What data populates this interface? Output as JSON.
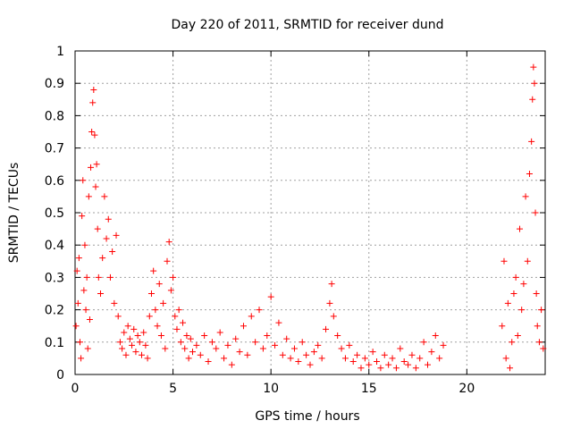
{
  "chart_data": {
    "type": "scatter",
    "title": "Day 220 of 2011, SRMTID for receiver dund",
    "xlabel": "GPS time / hours",
    "ylabel": "SRMTID / TECUs",
    "xlim": [
      0,
      24
    ],
    "ylim": [
      0,
      1
    ],
    "x_ticks": [
      0,
      5,
      10,
      15,
      20
    ],
    "x_tick_labels": [
      "0",
      "5",
      "10",
      "15",
      "20"
    ],
    "y_ticks": [
      0,
      0.1,
      0.2,
      0.3,
      0.4,
      0.5,
      0.6,
      0.7,
      0.8,
      0.9,
      1
    ],
    "y_tick_labels": [
      "0",
      "0.1",
      "0.2",
      "0.3",
      "0.4",
      "0.5",
      "0.6",
      "0.7",
      "0.8",
      "0.9",
      "1"
    ],
    "grid": true,
    "marker": "+",
    "series": [
      {
        "name": "dund",
        "color": "#ff0000",
        "points": [
          [
            0.05,
            0.15
          ],
          [
            0.1,
            0.32
          ],
          [
            0.15,
            0.22
          ],
          [
            0.2,
            0.36
          ],
          [
            0.25,
            0.1
          ],
          [
            0.3,
            0.05
          ],
          [
            0.35,
            0.49
          ],
          [
            0.4,
            0.6
          ],
          [
            0.45,
            0.26
          ],
          [
            0.5,
            0.4
          ],
          [
            0.55,
            0.2
          ],
          [
            0.6,
            0.3
          ],
          [
            0.65,
            0.08
          ],
          [
            0.7,
            0.55
          ],
          [
            0.75,
            0.17
          ],
          [
            0.8,
            0.64
          ],
          [
            0.85,
            0.75
          ],
          [
            0.9,
            0.84
          ],
          [
            0.95,
            0.88
          ],
          [
            1.0,
            0.74
          ],
          [
            1.05,
            0.58
          ],
          [
            1.1,
            0.65
          ],
          [
            1.15,
            0.45
          ],
          [
            1.2,
            0.3
          ],
          [
            1.3,
            0.25
          ],
          [
            1.4,
            0.36
          ],
          [
            1.5,
            0.55
          ],
          [
            1.6,
            0.42
          ],
          [
            1.7,
            0.48
          ],
          [
            1.8,
            0.3
          ],
          [
            1.9,
            0.38
          ],
          [
            2.0,
            0.22
          ],
          [
            2.1,
            0.43
          ],
          [
            2.2,
            0.18
          ],
          [
            2.3,
            0.1
          ],
          [
            2.4,
            0.08
          ],
          [
            2.5,
            0.13
          ],
          [
            2.6,
            0.06
          ],
          [
            2.7,
            0.15
          ],
          [
            2.8,
            0.11
          ],
          [
            2.9,
            0.09
          ],
          [
            3.0,
            0.14
          ],
          [
            3.1,
            0.07
          ],
          [
            3.2,
            0.12
          ],
          [
            3.3,
            0.1
          ],
          [
            3.4,
            0.06
          ],
          [
            3.5,
            0.13
          ],
          [
            3.6,
            0.09
          ],
          [
            3.7,
            0.05
          ],
          [
            3.8,
            0.18
          ],
          [
            3.9,
            0.25
          ],
          [
            4.0,
            0.32
          ],
          [
            4.1,
            0.2
          ],
          [
            4.2,
            0.15
          ],
          [
            4.3,
            0.28
          ],
          [
            4.4,
            0.12
          ],
          [
            4.5,
            0.22
          ],
          [
            4.6,
            0.08
          ],
          [
            4.7,
            0.35
          ],
          [
            4.8,
            0.41
          ],
          [
            4.9,
            0.26
          ],
          [
            5.0,
            0.3
          ],
          [
            5.1,
            0.18
          ],
          [
            5.2,
            0.14
          ],
          [
            5.3,
            0.2
          ],
          [
            5.4,
            0.1
          ],
          [
            5.5,
            0.16
          ],
          [
            5.6,
            0.08
          ],
          [
            5.7,
            0.12
          ],
          [
            5.8,
            0.05
          ],
          [
            5.9,
            0.11
          ],
          [
            6.0,
            0.07
          ],
          [
            6.2,
            0.09
          ],
          [
            6.4,
            0.06
          ],
          [
            6.6,
            0.12
          ],
          [
            6.8,
            0.04
          ],
          [
            7.0,
            0.1
          ],
          [
            7.2,
            0.08
          ],
          [
            7.4,
            0.13
          ],
          [
            7.6,
            0.05
          ],
          [
            7.8,
            0.09
          ],
          [
            8.0,
            0.03
          ],
          [
            8.2,
            0.11
          ],
          [
            8.4,
            0.07
          ],
          [
            8.6,
            0.15
          ],
          [
            8.8,
            0.06
          ],
          [
            9.0,
            0.18
          ],
          [
            9.2,
            0.1
          ],
          [
            9.4,
            0.2
          ],
          [
            9.6,
            0.08
          ],
          [
            9.8,
            0.12
          ],
          [
            10.0,
            0.24
          ],
          [
            10.2,
            0.09
          ],
          [
            10.4,
            0.16
          ],
          [
            10.6,
            0.06
          ],
          [
            10.8,
            0.11
          ],
          [
            11.0,
            0.05
          ],
          [
            11.2,
            0.08
          ],
          [
            11.4,
            0.04
          ],
          [
            11.6,
            0.1
          ],
          [
            11.8,
            0.06
          ],
          [
            12.0,
            0.03
          ],
          [
            12.2,
            0.07
          ],
          [
            12.4,
            0.09
          ],
          [
            12.6,
            0.05
          ],
          [
            12.8,
            0.14
          ],
          [
            13.0,
            0.22
          ],
          [
            13.1,
            0.28
          ],
          [
            13.2,
            0.18
          ],
          [
            13.4,
            0.12
          ],
          [
            13.6,
            0.08
          ],
          [
            13.8,
            0.05
          ],
          [
            14.0,
            0.09
          ],
          [
            14.2,
            0.04
          ],
          [
            14.4,
            0.06
          ],
          [
            14.6,
            0.02
          ],
          [
            14.8,
            0.05
          ],
          [
            15.0,
            0.03
          ],
          [
            15.2,
            0.07
          ],
          [
            15.4,
            0.04
          ],
          [
            15.6,
            0.02
          ],
          [
            15.8,
            0.06
          ],
          [
            16.0,
            0.03
          ],
          [
            16.2,
            0.05
          ],
          [
            16.4,
            0.02
          ],
          [
            16.6,
            0.08
          ],
          [
            16.8,
            0.04
          ],
          [
            17.0,
            0.03
          ],
          [
            17.2,
            0.06
          ],
          [
            17.4,
            0.02
          ],
          [
            17.6,
            0.05
          ],
          [
            17.8,
            0.1
          ],
          [
            18.0,
            0.03
          ],
          [
            18.2,
            0.07
          ],
          [
            18.4,
            0.12
          ],
          [
            18.6,
            0.05
          ],
          [
            18.8,
            0.09
          ],
          [
            21.8,
            0.15
          ],
          [
            21.9,
            0.35
          ],
          [
            22.0,
            0.05
          ],
          [
            22.1,
            0.22
          ],
          [
            22.2,
            0.02
          ],
          [
            22.3,
            0.1
          ],
          [
            22.4,
            0.25
          ],
          [
            22.5,
            0.3
          ],
          [
            22.6,
            0.12
          ],
          [
            22.7,
            0.45
          ],
          [
            22.8,
            0.2
          ],
          [
            22.9,
            0.28
          ],
          [
            23.0,
            0.55
          ],
          [
            23.1,
            0.35
          ],
          [
            23.2,
            0.62
          ],
          [
            23.3,
            0.72
          ],
          [
            23.35,
            0.85
          ],
          [
            23.4,
            0.95
          ],
          [
            23.45,
            0.9
          ],
          [
            23.5,
            0.5
          ],
          [
            23.55,
            0.25
          ],
          [
            23.6,
            0.15
          ],
          [
            23.7,
            0.1
          ],
          [
            23.8,
            0.2
          ],
          [
            23.9,
            0.08
          ]
        ]
      }
    ]
  }
}
